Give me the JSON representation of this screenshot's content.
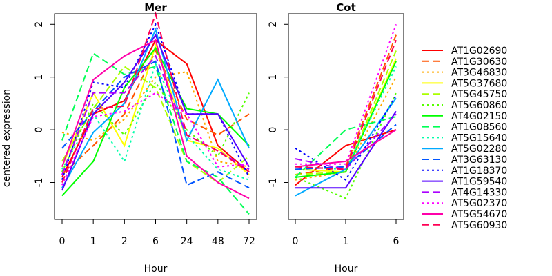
{
  "chart_data": {
    "type": "line",
    "ylabel": "centered expression",
    "legend_position": "right",
    "series": [
      {
        "name": "AT1G02690",
        "color": "#ff0000",
        "dash": "solid"
      },
      {
        "name": "AT1G30630",
        "color": "#ff5400",
        "dash": "dashed"
      },
      {
        "name": "AT3G46830",
        "color": "#ffaa00",
        "dash": "dotted"
      },
      {
        "name": "AT5G37680",
        "color": "#ffff00",
        "dash": "solid"
      },
      {
        "name": "AT5G45750",
        "color": "#aaff00",
        "dash": "dashed"
      },
      {
        "name": "AT5G60860",
        "color": "#55ff00",
        "dash": "dotted"
      },
      {
        "name": "AT4G02150",
        "color": "#00ff00",
        "dash": "solid"
      },
      {
        "name": "AT1G08560",
        "color": "#00ff55",
        "dash": "dashed"
      },
      {
        "name": "AT5G15640",
        "color": "#00ffaa",
        "dash": "dotted"
      },
      {
        "name": "AT5G02280",
        "color": "#00aaff",
        "dash": "solid"
      },
      {
        "name": "AT3G63130",
        "color": "#0055ff",
        "dash": "dashed"
      },
      {
        "name": "AT1G18370",
        "color": "#0000ff",
        "dash": "dotted"
      },
      {
        "name": "AT1G59540",
        "color": "#5500ff",
        "dash": "solid"
      },
      {
        "name": "AT4G14330",
        "color": "#aa00ff",
        "dash": "dashed"
      },
      {
        "name": "AT5G02370",
        "color": "#ff00ff",
        "dash": "dotted"
      },
      {
        "name": "AT5G54670",
        "color": "#ff00aa",
        "dash": "solid"
      },
      {
        "name": "AT5G60930",
        "color": "#ff0055",
        "dash": "dashed"
      }
    ],
    "panels": [
      {
        "title": "Mer",
        "xlabel": "Hour",
        "categories": [
          "0",
          "1",
          "2",
          "6",
          "24",
          "48",
          "72"
        ],
        "ylim": [
          -1.7,
          2.2
        ],
        "yticks": [
          -1,
          0,
          1,
          2
        ],
        "values": [
          [
            -0.9,
            0.3,
            0.55,
            1.7,
            1.25,
            -0.3,
            -0.8
          ],
          [
            -0.85,
            -0.3,
            0.3,
            1.5,
            0.2,
            -0.1,
            0.3
          ],
          [
            -0.05,
            -0.2,
            0.2,
            1.0,
            1.1,
            -0.6,
            -0.7
          ],
          [
            -0.7,
            0.7,
            -0.3,
            1.6,
            -0.2,
            -0.35,
            -0.85
          ],
          [
            -0.6,
            0.4,
            1.2,
            0.8,
            -0.6,
            -1.0,
            -0.5
          ],
          [
            -0.8,
            0.5,
            -0.1,
            0.9,
            0.0,
            -0.5,
            0.7
          ],
          [
            -1.25,
            -0.6,
            0.8,
            1.55,
            0.4,
            0.3,
            -0.3
          ],
          [
            -0.2,
            1.45,
            1.05,
            1.2,
            -0.6,
            -0.9,
            -1.6
          ],
          [
            -0.75,
            0.3,
            -0.6,
            1.25,
            -0.1,
            -0.75,
            -0.95
          ],
          [
            -1.1,
            -0.05,
            0.5,
            1.9,
            -0.2,
            0.95,
            -0.35
          ],
          [
            -0.35,
            0.35,
            1.0,
            1.3,
            -1.05,
            -0.8,
            -1.1
          ],
          [
            -0.95,
            0.9,
            0.8,
            2.0,
            0.3,
            0.3,
            -0.9
          ],
          [
            -1.15,
            0.3,
            0.9,
            1.8,
            0.3,
            0.3,
            -0.7
          ],
          [
            -0.85,
            0.7,
            0.7,
            1.4,
            -0.1,
            -0.4,
            -0.75
          ],
          [
            -1.05,
            0.25,
            0.35,
            0.7,
            0.3,
            -0.7,
            -0.65
          ],
          [
            -0.7,
            0.95,
            1.4,
            1.7,
            -0.5,
            -1.0,
            -1.3
          ],
          [
            -1.0,
            0.4,
            0.45,
            2.2,
            -0.1,
            -0.4,
            -0.8
          ]
        ]
      },
      {
        "title": "Cot",
        "xlabel": "Hour",
        "categories": [
          "0",
          "1",
          "6"
        ],
        "ylim": [
          -1.7,
          2.2
        ],
        "yticks": [
          -1,
          0,
          1,
          2
        ],
        "values": [
          [
            -1.05,
            -0.3,
            0.0
          ],
          [
            -0.85,
            -0.7,
            1.8
          ],
          [
            -0.95,
            -0.8,
            1.0
          ],
          [
            -0.75,
            -0.8,
            1.35
          ],
          [
            -0.85,
            -0.8,
            1.5
          ],
          [
            -0.9,
            -1.3,
            0.7
          ],
          [
            -0.9,
            -0.8,
            1.3
          ],
          [
            -0.9,
            0.0,
            0.25
          ],
          [
            -0.7,
            -0.75,
            1.2
          ],
          [
            -1.25,
            -0.75,
            0.6
          ],
          [
            -0.75,
            -0.7,
            0.1
          ],
          [
            -0.35,
            -0.95,
            0.65
          ],
          [
            -1.1,
            -1.1,
            0.35
          ],
          [
            -0.55,
            -0.75,
            0.3
          ],
          [
            -0.65,
            -0.65,
            2.0
          ],
          [
            -0.7,
            -0.6,
            0.0
          ],
          [
            -0.7,
            -0.75,
            1.7
          ]
        ]
      }
    ]
  }
}
